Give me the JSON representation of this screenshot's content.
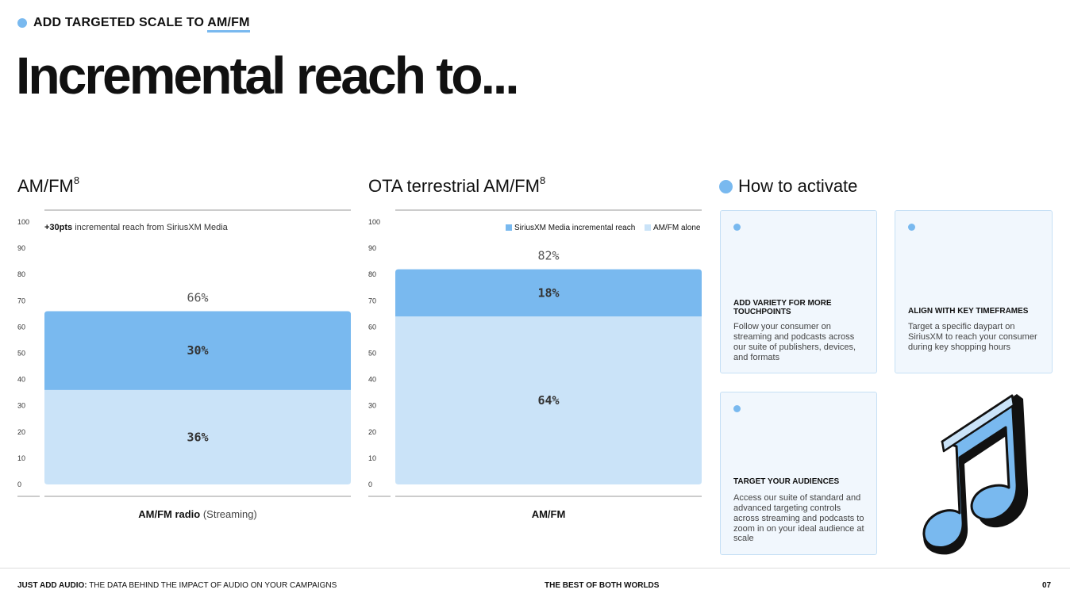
{
  "eyebrow": {
    "prefix": "ADD TARGETED SCALE TO ",
    "underlined": "AM/FM"
  },
  "page_title": "Incremental reach to...",
  "charts_meta": [
    {
      "title": "AM/FM",
      "sup": "8"
    },
    {
      "title": "OTA terrestrial AM/FM",
      "sup": "8"
    }
  ],
  "chart_data": [
    {
      "type": "bar",
      "stacked": true,
      "title": "AM/FM",
      "categories": [
        "AM/FM radio (Streaming)"
      ],
      "x_label_bold": "AM/FM radio",
      "x_label_rest": " (Streaming)",
      "ylim": [
        0,
        100
      ],
      "yticks": [
        0,
        10,
        20,
        30,
        40,
        50,
        60,
        70,
        80,
        90,
        100
      ],
      "series": [
        {
          "name": "AM/FM alone",
          "values": [
            36
          ],
          "color": "#cae3f8"
        },
        {
          "name": "SiriusXM Media incremental reach",
          "values": [
            30
          ],
          "color": "#79b9ef"
        }
      ],
      "segment_labels": [
        "36%",
        "30%"
      ],
      "total": 66,
      "total_label": "66%",
      "annotation_bold": "+30pts",
      "annotation_rest": " incremental reach from SiriusXM Media",
      "legend": false
    },
    {
      "type": "bar",
      "stacked": true,
      "title": "OTA terrestrial AM/FM",
      "categories": [
        "AM/FM"
      ],
      "x_label_bold": "AM/FM",
      "x_label_rest": "",
      "ylim": [
        0,
        100
      ],
      "yticks": [
        0,
        10,
        20,
        30,
        40,
        50,
        60,
        70,
        80,
        90,
        100
      ],
      "series": [
        {
          "name": "AM/FM alone",
          "values": [
            64
          ],
          "color": "#cae3f8"
        },
        {
          "name": "SiriusXM Media incremental reach",
          "values": [
            18
          ],
          "color": "#79b9ef"
        }
      ],
      "segment_labels": [
        "64%",
        "18%"
      ],
      "total": 82,
      "total_label": "82%",
      "legend": true,
      "legend_placement": "top-right",
      "legend_items": [
        "SiriusXM Media incremental reach",
        "AM/FM alone"
      ]
    }
  ],
  "activate": {
    "title": "How to activate",
    "cards": [
      {
        "heading": "ADD VARIETY FOR MORE TOUCHPOINTS",
        "body": "Follow your consumer on streaming and podcasts across our suite of publishers, devices, and formats"
      },
      {
        "heading": "ALIGN WITH KEY TIMEFRAMES",
        "body": "Target a specific daypart on SiriusXM to reach your consumer during key shopping hours"
      },
      {
        "heading": "TARGET YOUR AUDIENCES",
        "body": "Access our suite of standard and advanced targeting controls across streaming and podcasts to zoom in on your ideal audience at scale"
      }
    ],
    "illustration_icon": "music-note-icon"
  },
  "footer": {
    "left_bold": "JUST ADD AUDIO:",
    "left_rest": " THE DATA BEHIND THE IMPACT OF AUDIO ON YOUR CAMPAIGNS",
    "center": "THE BEST OF BOTH WORLDS",
    "page": "07"
  },
  "colors": {
    "accent": "#79b9ef",
    "light": "#cae3f8",
    "card_bg": "#f1f7fd"
  }
}
